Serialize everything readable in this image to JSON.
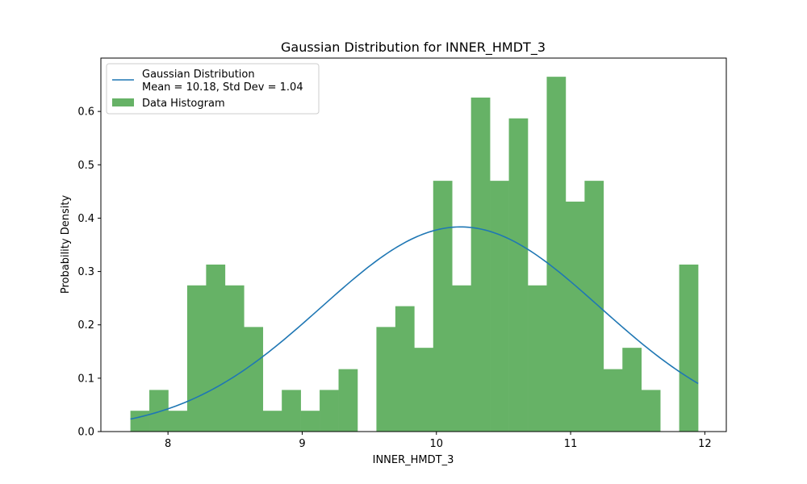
{
  "chart_data": {
    "type": "bar",
    "title": "Gaussian Distribution for INNER_HMDT_3",
    "xlabel": "INNER_HMDT_3",
    "ylabel": "Probability Density",
    "xlim": [
      7.5,
      12.16
    ],
    "ylim": [
      0,
      0.7
    ],
    "xticks": [
      8,
      9,
      10,
      11,
      12
    ],
    "yticks": [
      0.0,
      0.1,
      0.2,
      0.3,
      0.4,
      0.5,
      0.6
    ],
    "legend_position": "top-left",
    "histogram": {
      "name": "Data Histogram",
      "color": "#66b266",
      "bin_start": 7.72,
      "bin_width": 0.141,
      "densities": [
        0.039,
        0.078,
        0.039,
        0.274,
        0.313,
        0.274,
        0.196,
        0.039,
        0.078,
        0.039,
        0.078,
        0.117,
        0.0,
        0.196,
        0.235,
        0.157,
        0.47,
        0.274,
        0.626,
        0.47,
        0.587,
        0.274,
        0.665,
        0.431,
        0.47,
        0.117,
        0.157,
        0.078,
        0.0,
        0.313
      ]
    },
    "gaussian": {
      "name": "Gaussian Distribution",
      "stats_label": "Mean = 10.18, Std Dev = 1.04",
      "mean": 10.18,
      "std": 1.04,
      "x_range": [
        7.72,
        11.95
      ],
      "color": "#1f77b4"
    }
  }
}
